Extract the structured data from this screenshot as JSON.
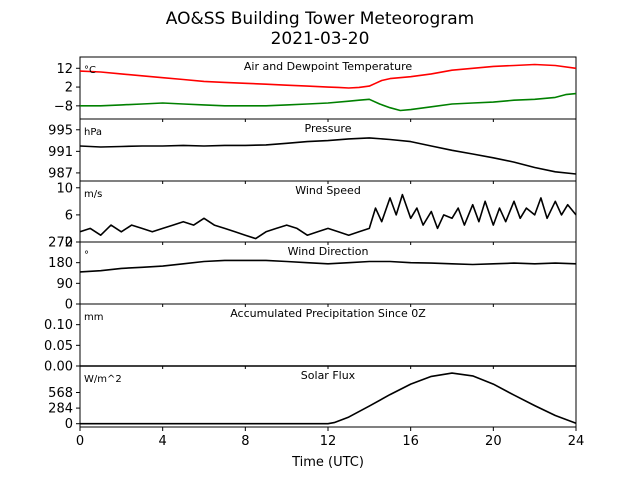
{
  "figure": {
    "title_line1": "AO&SS Building Tower Meteorogram",
    "title_line2": "2021-03-20"
  },
  "chart_data": [
    {
      "id": "temperature",
      "type": "line",
      "title": "Air and Dewpoint Temperature",
      "unit_label": "°C",
      "xlim": [
        0,
        24
      ],
      "ylim": [
        -15,
        18
      ],
      "yticks": [
        12,
        2,
        -8
      ],
      "yticklabels": [
        "12",
        "2",
        "−8"
      ],
      "series": [
        {
          "color": "#ff0000",
          "x": [
            0,
            1,
            2,
            3,
            4,
            5,
            6,
            7,
            8,
            9,
            10,
            11,
            12,
            12.5,
            13,
            13.5,
            14,
            14.3,
            14.6,
            15,
            16,
            17,
            18,
            19,
            20,
            21,
            22,
            23,
            24
          ],
          "y": [
            10.5,
            10,
            9,
            8,
            7,
            6,
            5,
            4.5,
            4,
            3.5,
            3,
            2.5,
            2,
            1.8,
            1.5,
            1.8,
            2.5,
            4,
            5.5,
            6.5,
            7.5,
            9,
            11,
            12,
            13,
            13.5,
            14,
            13.5,
            12
          ]
        },
        {
          "color": "#008000",
          "x": [
            0,
            1,
            2,
            3,
            4,
            5,
            6,
            7,
            8,
            9,
            10,
            11,
            12,
            13,
            13.5,
            14,
            14.5,
            15,
            15.5,
            16,
            17,
            18,
            19,
            20,
            21,
            22,
            23,
            23.5,
            24
          ],
          "y": [
            -8,
            -8,
            -7.5,
            -7,
            -6.5,
            -7,
            -7.5,
            -8,
            -8,
            -8,
            -7.5,
            -7,
            -6.5,
            -5.5,
            -5,
            -4.5,
            -7,
            -9,
            -10.5,
            -10,
            -8.5,
            -7,
            -6.5,
            -6,
            -5,
            -4.5,
            -3.5,
            -2,
            -1.5
          ]
        }
      ]
    },
    {
      "id": "pressure",
      "type": "line",
      "title": "Pressure",
      "unit_label": "hPa",
      "xlim": [
        0,
        24
      ],
      "ylim": [
        985.5,
        997
      ],
      "yticks": [
        995,
        991,
        987
      ],
      "yticklabels": [
        "995",
        "991",
        "987"
      ],
      "series": [
        {
          "color": "#000000",
          "x": [
            0,
            1,
            2,
            3,
            4,
            5,
            6,
            7,
            8,
            9,
            10,
            11,
            12,
            13,
            14,
            15,
            16,
            17,
            18,
            19,
            20,
            21,
            22,
            23,
            24
          ],
          "y": [
            992,
            991.8,
            991.9,
            992,
            992,
            992.1,
            992,
            992.1,
            992.1,
            992.2,
            992.5,
            992.8,
            993,
            993.3,
            993.5,
            993.2,
            992.8,
            992,
            991.2,
            990.5,
            989.8,
            989,
            988,
            987.2,
            986.8
          ]
        }
      ]
    },
    {
      "id": "wind_speed",
      "type": "line",
      "title": "Wind Speed",
      "unit_label": "m/s",
      "xlim": [
        0,
        24
      ],
      "ylim": [
        2,
        11
      ],
      "yticks": [
        10,
        6,
        2
      ],
      "yticklabels": [
        "10",
        "6",
        "2"
      ],
      "series": [
        {
          "color": "#000000",
          "x": [
            0,
            0.5,
            1,
            1.5,
            2,
            2.5,
            3,
            3.5,
            4,
            4.5,
            5,
            5.5,
            6,
            6.5,
            7,
            7.5,
            8,
            8.5,
            9,
            9.5,
            10,
            10.5,
            11,
            11.5,
            12,
            12.5,
            13,
            13.5,
            14,
            14.3,
            14.6,
            15,
            15.3,
            15.6,
            16,
            16.3,
            16.6,
            17,
            17.3,
            17.6,
            18,
            18.3,
            18.6,
            19,
            19.3,
            19.6,
            20,
            20.3,
            20.6,
            21,
            21.3,
            21.6,
            22,
            22.3,
            22.6,
            23,
            23.3,
            23.6,
            24
          ],
          "y": [
            3.5,
            4,
            3,
            4.5,
            3.5,
            4.5,
            4,
            3.5,
            4,
            4.5,
            5,
            4.5,
            5.5,
            4.5,
            4,
            3.5,
            3,
            2.5,
            3.5,
            4,
            4.5,
            4,
            3,
            3.5,
            4,
            3.5,
            3,
            3.5,
            4,
            7,
            5,
            8.5,
            6,
            9,
            5.5,
            7,
            4.5,
            6.5,
            4,
            6,
            5.5,
            7,
            4.5,
            7.5,
            5,
            8,
            4.5,
            7,
            5,
            8,
            5.5,
            7,
            6,
            8.5,
            5.5,
            8,
            6,
            7.5,
            6
          ]
        }
      ]
    },
    {
      "id": "wind_direction",
      "type": "line",
      "title": "Wind Direction",
      "unit_label": "°",
      "xlim": [
        0,
        24
      ],
      "ylim": [
        0,
        270
      ],
      "yticks": [
        270,
        180,
        90,
        0
      ],
      "yticklabels": [
        "270",
        "180",
        "90",
        "0"
      ],
      "series": [
        {
          "color": "#000000",
          "x": [
            0,
            1,
            2,
            3,
            4,
            5,
            6,
            7,
            8,
            9,
            10,
            11,
            12,
            13,
            14,
            15,
            16,
            17,
            18,
            19,
            20,
            21,
            22,
            23,
            24
          ],
          "y": [
            140,
            145,
            155,
            160,
            165,
            175,
            185,
            190,
            190,
            190,
            185,
            180,
            175,
            180,
            185,
            185,
            180,
            178,
            175,
            172,
            175,
            178,
            175,
            178,
            175
          ]
        }
      ]
    },
    {
      "id": "precipitation",
      "type": "line",
      "title": "Accumulated Precipitation Since 0Z",
      "unit_label": "mm",
      "xlim": [
        0,
        24
      ],
      "ylim": [
        0,
        0.15
      ],
      "yticks": [
        0.1,
        0.05,
        0.0
      ],
      "yticklabels": [
        "0.10",
        "0.05",
        "0.00"
      ],
      "series": [
        {
          "color": "#000000",
          "x": [
            0,
            24
          ],
          "y": [
            0,
            0
          ]
        }
      ]
    },
    {
      "id": "solar_flux",
      "type": "line",
      "title": "Solar Flux",
      "unit_label": "W/m^2",
      "xlim": [
        0,
        24
      ],
      "ylim": [
        -60,
        1050
      ],
      "yticks": [
        568,
        284,
        0
      ],
      "yticklabels": [
        "568",
        "284",
        "0"
      ],
      "series": [
        {
          "color": "#000000",
          "x": [
            0,
            4,
            8,
            12,
            12.3,
            13,
            14,
            15,
            16,
            17,
            18,
            19,
            20,
            21,
            22,
            23,
            24
          ],
          "y": [
            0,
            0,
            0,
            0,
            20,
            120,
            320,
            530,
            720,
            860,
            920,
            870,
            720,
            520,
            330,
            150,
            10
          ]
        }
      ]
    }
  ],
  "x_axis": {
    "label": "Time (UTC)",
    "ticks": [
      0,
      4,
      8,
      12,
      16,
      20,
      24
    ],
    "ticklabels": [
      "0",
      "4",
      "8",
      "12",
      "16",
      "20",
      "24"
    ]
  }
}
